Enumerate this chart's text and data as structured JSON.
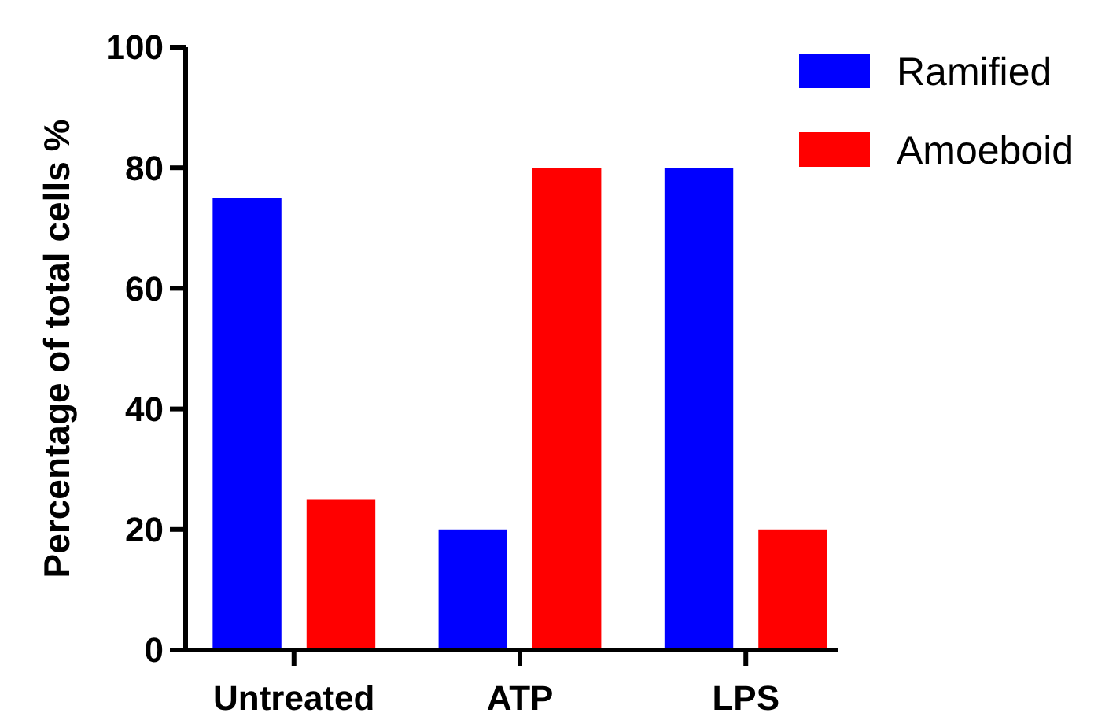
{
  "chart_data": {
    "type": "bar",
    "ylabel": "Percentage of total cells %",
    "categories": [
      "Untreated",
      "ATP",
      "LPS"
    ],
    "series": [
      {
        "name": "Ramified",
        "color": "#0000ff",
        "values": [
          75,
          20,
          80
        ]
      },
      {
        "name": "Amoeboid",
        "color": "#ff0000",
        "values": [
          25,
          80,
          20
        ]
      }
    ],
    "ylim": [
      0,
      100
    ],
    "yticks": [
      0,
      20,
      40,
      60,
      80,
      100
    ],
    "grid": false,
    "legend": "top right"
  }
}
